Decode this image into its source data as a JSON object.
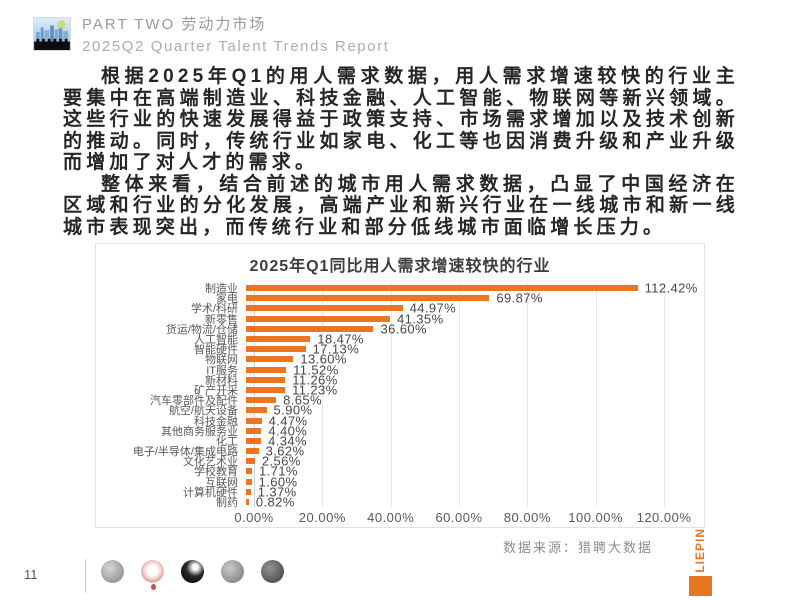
{
  "header": {
    "part_label": "PART TWO 劳动力市场",
    "subtitle": "2025Q2 Quarter Talent Trends Report",
    "icon": "city-skyline-icon"
  },
  "body": {
    "paragraph1": "根据2025年Q1的用人需求数据，用人需求增速较快的行业主要集中在高端制造业、科技金融、人工智能、物联网等新兴领域。这些行业的快速发展得益于政策支持、市场需求增加以及技术创新的推动。同时，传统行业如家电、化工等也因消费升级和产业升级而增加了对人才的需求。",
    "paragraph2": "整体来看，结合前述的城市用人需求数据，凸显了中国经济在区域和行业的分化发展，高端产业和新兴行业在一线城市和新一线城市表现突出，而传统行业和部分低线城市面临增长压力。"
  },
  "chart_data": {
    "type": "bar",
    "orientation": "horizontal",
    "title": "2025年Q1同比用人需求增速较快的行业",
    "categories": [
      "制造业",
      "家电",
      "学术/科研",
      "新零售",
      "货运/物流/仓储",
      "人工智能",
      "智能硬件",
      "物联网",
      "IT服务",
      "新材料",
      "矿产开采",
      "汽车零部件及配件",
      "航空/航天设备",
      "科技金融",
      "其他商务服务业",
      "化工",
      "电子/半导体/集成电路",
      "文化艺术业",
      "学校教育",
      "互联网",
      "计算机硬件",
      "制药"
    ],
    "values": [
      112.42,
      69.87,
      44.97,
      41.35,
      36.6,
      18.47,
      17.13,
      13.6,
      11.52,
      11.26,
      11.23,
      8.65,
      5.9,
      4.47,
      4.4,
      4.34,
      3.62,
      2.56,
      1.71,
      1.6,
      1.37,
      0.82
    ],
    "value_labels": [
      "112.42%",
      "69.87%",
      "44.97%",
      "41.35%",
      "36.60%",
      "18.47%",
      "17.13%",
      "13.60%",
      "11.52%",
      "11.26%",
      "11.23%",
      "8.65%",
      "5.90%",
      "4.47%",
      "4.40%",
      "4.34%",
      "3.62%",
      "2.56%",
      "1.71%",
      "1.60%",
      "1.37%",
      "0.82%"
    ],
    "x_ticks": [
      "0.00%",
      "20.00%",
      "40.00%",
      "60.00%",
      "80.00%",
      "100.00%",
      "120.00%"
    ],
    "xlim": [
      0,
      120
    ],
    "grid": true,
    "bar_color": "#ED7420"
  },
  "chart_footer": {
    "source": "数据来源：猎聘大数据"
  },
  "logo": {
    "text": "LIEPIN",
    "color": "#E87722"
  },
  "footer": {
    "page_number": "11",
    "social_icons": [
      "gray-globe-logo-icon",
      "red-white-logo-icon",
      "black-logo-icon",
      "gray-logo-icon",
      "dark-gray-logo-icon"
    ]
  }
}
